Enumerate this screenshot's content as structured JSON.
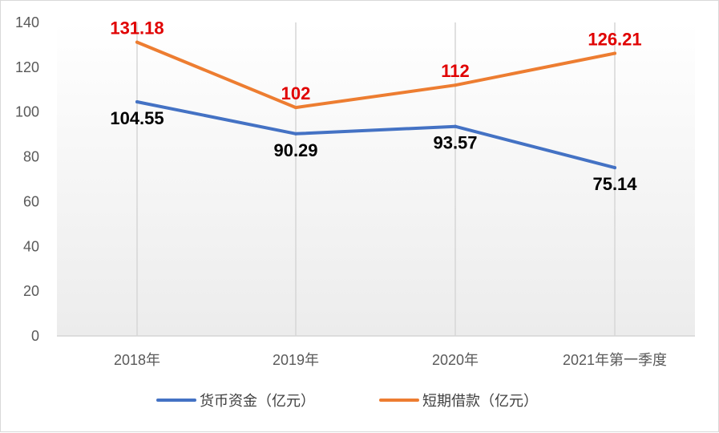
{
  "chart_data": {
    "type": "line",
    "categories": [
      "2018年",
      "2019年",
      "2020年",
      "2021年第一季度"
    ],
    "series": [
      {
        "name": "货币资金（亿元）",
        "values": [
          104.55,
          90.29,
          93.57,
          75.14
        ],
        "labels": [
          "104.55",
          "90.29",
          "93.57",
          "75.14"
        ],
        "color": "#4472c4",
        "label_color": "#000000",
        "label_position": "below"
      },
      {
        "name": "短期借款（亿元）",
        "values": [
          131.18,
          102,
          112,
          126.21
        ],
        "labels": [
          "131.18",
          "102",
          "112",
          "126.21"
        ],
        "color": "#ed7d31",
        "label_color": "#e00000",
        "label_position": "above"
      }
    ],
    "ylim": [
      0,
      140
    ],
    "yticks": [
      0,
      20,
      40,
      60,
      80,
      100,
      120,
      140
    ],
    "grid": "vertical",
    "legend": "bottom",
    "title": "",
    "xlabel": "",
    "ylabel": ""
  }
}
